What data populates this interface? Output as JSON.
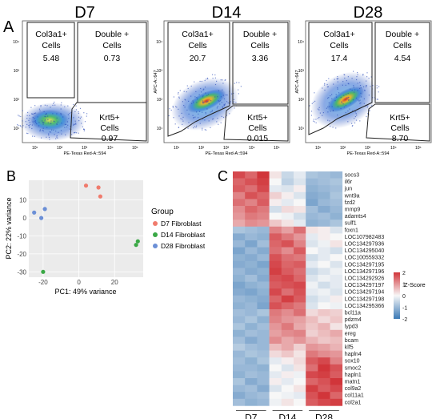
{
  "panel_labels": {
    "a": "A",
    "b": "B",
    "c": "C"
  },
  "flow": {
    "axis": {
      "x": "PE-Texas Red-A::594",
      "y": "APC-A::647"
    },
    "x_ticks": [
      "10¹",
      "10²",
      "10³",
      "10⁴",
      "10⁵"
    ],
    "y_ticks": [
      "10¹",
      "10²",
      "10³",
      "10⁴"
    ],
    "plots": [
      {
        "title": "D7",
        "gates": [
          {
            "l1": "Col3a1+",
            "l2": "Cells",
            "value": "5.48"
          },
          {
            "l1": "Double +",
            "l2": "Cells",
            "value": "0.73"
          },
          {
            "l1": "Krt5+",
            "l2": "Cells",
            "value": "0.97"
          }
        ]
      },
      {
        "title": "D14",
        "gates": [
          {
            "l1": "Col3a1+",
            "l2": "Cells",
            "value": "20.7"
          },
          {
            "l1": "Double +",
            "l2": "Cells",
            "value": "3.36"
          },
          {
            "l1": "Krt5+",
            "l2": "Cells",
            "value": "0.015"
          }
        ]
      },
      {
        "title": "D28",
        "gates": [
          {
            "l1": "Col3a1+",
            "l2": "Cells",
            "value": "17.4"
          },
          {
            "l1": "Double +",
            "l2": "Cells",
            "value": "4.54"
          },
          {
            "l1": "Krt5+",
            "l2": "Cells",
            "value": "8.70"
          }
        ]
      }
    ]
  },
  "chart_data": [
    {
      "type": "scatter",
      "xlabel": "PC1: 49% variance",
      "ylabel": "PC2: 22% variance",
      "xlim": [
        -28,
        36
      ],
      "ylim": [
        -33,
        21
      ],
      "x_ticks": [
        -20,
        0,
        20
      ],
      "y_ticks": [
        -30,
        -20,
        -10,
        0,
        10
      ],
      "grid": true,
      "legend": {
        "title": "Group",
        "position": "right"
      },
      "series": [
        {
          "name": "D7 Fibroblast",
          "color": "#f07b6d",
          "points": [
            [
              4,
              18
            ],
            [
              11,
              17
            ],
            [
              12,
              12
            ]
          ]
        },
        {
          "name": "D14 Fibroblast",
          "color": "#3aa845",
          "points": [
            [
              -20,
              -30
            ],
            [
              33,
              -13
            ],
            [
              32,
              -15
            ]
          ]
        },
        {
          "name": "D28 Fibroblast",
          "color": "#6b8fd6",
          "points": [
            [
              -25,
              3
            ],
            [
              -21,
              0
            ],
            [
              -19,
              5
            ]
          ]
        }
      ]
    },
    {
      "type": "heatmap",
      "rows": [
        "socs3",
        "il6r",
        "jun",
        "wnt9a",
        "fzd2",
        "mmp9",
        "adamts4",
        "sulf1",
        "foxn1",
        "LOC107982483",
        "LOC134297936",
        "LOC134295040",
        "LOC100559332",
        "LOC134297195",
        "LOC134297196",
        "LOC134292926",
        "LOC134297197",
        "LOC134297194",
        "LOC134297198",
        "LOC134295366",
        "bcl11a",
        "pdzm4",
        "lypd3",
        "ereg",
        "bcam",
        "klf5",
        "hapln4",
        "sox10",
        "smoc2",
        "hapln1",
        "matn1",
        "col9a2",
        "col11a1",
        "col2a1"
      ],
      "groups": [
        "D7",
        "D14",
        "D28"
      ],
      "samples_per_group": 3,
      "legend": {
        "title": "Z-Score",
        "ticks": [
          2,
          1,
          0,
          -1,
          -2
        ],
        "position": "right"
      },
      "colors": {
        "low": "#3a79b6",
        "mid": "#f7f7f7",
        "high": "#d1353a"
      },
      "values": [
        [
          1.8,
          1.5,
          2.0,
          0.2,
          -0.5,
          -0.2,
          -0.8,
          -0.9,
          -1.0
        ],
        [
          1.5,
          1.7,
          1.9,
          0.0,
          -0.6,
          -0.3,
          -1.0,
          -0.9,
          -0.8
        ],
        [
          1.6,
          1.4,
          1.8,
          -0.2,
          -0.3,
          0.1,
          -1.1,
          -1.0,
          -0.9
        ],
        [
          1.2,
          1.7,
          1.5,
          0.4,
          0.1,
          -0.3,
          -1.2,
          -1.1,
          -0.8
        ],
        [
          1.4,
          1.2,
          1.6,
          0.1,
          -0.2,
          0.0,
          -1.3,
          -1.0,
          -0.9
        ],
        [
          1.1,
          1.5,
          1.3,
          -0.4,
          0.3,
          0.2,
          -0.9,
          -1.2,
          -1.0
        ],
        [
          1.0,
          1.3,
          1.2,
          0.0,
          -0.1,
          -0.4,
          -1.0,
          -0.9,
          -1.1
        ],
        [
          0.8,
          1.1,
          1.0,
          0.5,
          0.2,
          -0.2,
          -1.1,
          -1.0,
          -0.8
        ],
        [
          -0.8,
          -0.9,
          -1.0,
          1.2,
          0.9,
          1.4,
          0.2,
          0.1,
          -0.3
        ],
        [
          -1.2,
          -1.0,
          -1.1,
          1.6,
          1.3,
          1.0,
          -0.2,
          0.1,
          0.0
        ],
        [
          -1.0,
          -1.3,
          -0.9,
          1.5,
          1.7,
          1.2,
          -0.3,
          -0.1,
          0.2
        ],
        [
          -1.3,
          -1.0,
          -1.2,
          1.4,
          1.1,
          1.6,
          0.0,
          -0.2,
          -0.4
        ],
        [
          -1.1,
          -1.2,
          -1.0,
          1.7,
          1.4,
          1.3,
          -0.4,
          -0.2,
          0.0
        ],
        [
          -1.2,
          -1.1,
          -1.3,
          1.8,
          1.5,
          1.6,
          -0.2,
          0.0,
          -0.3
        ],
        [
          -1.0,
          -1.2,
          -1.1,
          1.9,
          1.6,
          1.4,
          -0.5,
          -0.3,
          -0.1
        ],
        [
          -1.1,
          -0.9,
          -1.2,
          1.7,
          1.8,
          1.5,
          -0.3,
          -0.1,
          -0.2
        ],
        [
          -1.3,
          -1.1,
          -1.0,
          1.6,
          1.7,
          1.8,
          -0.1,
          -0.4,
          -0.2
        ],
        [
          -1.2,
          -1.3,
          -1.1,
          1.8,
          1.4,
          1.7,
          -0.2,
          -0.1,
          -0.3
        ],
        [
          -1.0,
          -1.1,
          -1.2,
          1.5,
          1.9,
          1.6,
          -0.4,
          -0.2,
          0.1
        ],
        [
          -1.1,
          -1.0,
          -1.3,
          1.7,
          1.5,
          1.3,
          -0.3,
          0.0,
          -0.1
        ],
        [
          -0.9,
          -1.0,
          -0.8,
          1.3,
          1.1,
          1.4,
          0.3,
          0.5,
          0.4
        ],
        [
          -1.0,
          -0.8,
          -1.1,
          1.2,
          1.0,
          0.9,
          0.6,
          0.3,
          0.5
        ],
        [
          -0.8,
          -1.1,
          -0.9,
          1.0,
          1.3,
          0.8,
          0.5,
          0.7,
          0.2
        ],
        [
          -1.1,
          -0.9,
          -1.0,
          0.9,
          1.1,
          1.2,
          0.4,
          0.6,
          0.8
        ],
        [
          -0.9,
          -1.2,
          -1.0,
          1.1,
          0.8,
          1.0,
          0.7,
          0.5,
          0.6
        ],
        [
          -0.7,
          -0.9,
          -1.0,
          0.6,
          0.8,
          0.4,
          1.0,
          0.9,
          0.7
        ],
        [
          -1.0,
          -0.8,
          -0.9,
          0.3,
          0.5,
          0.2,
          1.3,
          1.1,
          1.0
        ],
        [
          -0.9,
          -1.1,
          -0.8,
          -0.2,
          0.1,
          0.3,
          1.6,
          1.8,
          1.2
        ],
        [
          -1.0,
          -1.0,
          -1.1,
          0.0,
          -0.3,
          0.2,
          1.4,
          2.0,
          1.7
        ],
        [
          -1.1,
          -0.9,
          -1.0,
          -0.2,
          0.1,
          -0.1,
          1.8,
          1.9,
          1.6
        ],
        [
          -0.8,
          -1.2,
          -1.0,
          0.1,
          -0.2,
          0.0,
          1.5,
          1.7,
          2.0
        ],
        [
          -1.0,
          -0.9,
          -1.2,
          -0.3,
          0.0,
          0.2,
          1.9,
          1.6,
          1.8
        ],
        [
          -1.2,
          -1.0,
          -0.9,
          0.0,
          -0.1,
          -0.2,
          1.7,
          2.0,
          1.5
        ],
        [
          -0.9,
          -1.1,
          -1.0,
          -0.1,
          0.2,
          0.0,
          1.6,
          1.8,
          1.9
        ]
      ]
    }
  ]
}
